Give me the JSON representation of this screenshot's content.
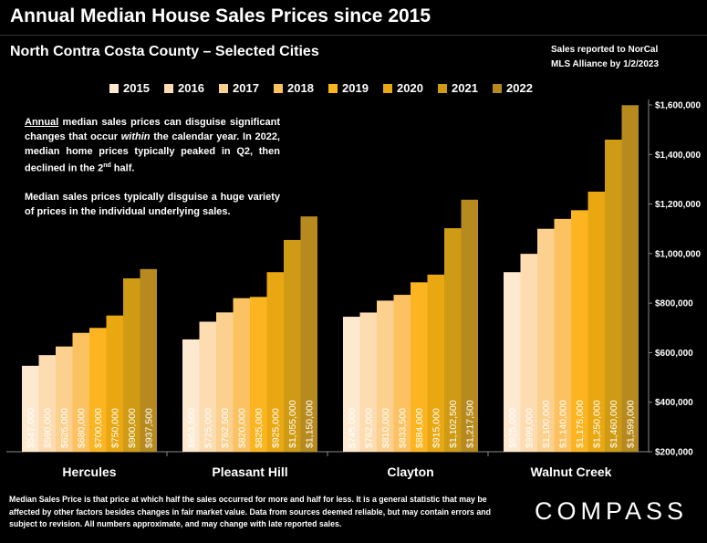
{
  "header": {
    "title": "Annual Median House Sales Prices since 2015",
    "subtitle": "North Contra Costa County – Selected Cities",
    "source_line1": "Sales reported to NorCal",
    "source_line2": "MLS Alliance by 1/2/2023"
  },
  "note": {
    "p1_underlined": "Annual",
    "p1_a": " median sales prices can disguise significant changes that occur ",
    "p1_italic": "within",
    "p1_b": " the calendar year. In 2022, median home prices typically peaked in Q2, then declined in the 2",
    "p1_sup": "nd",
    "p1_c": " half.",
    "p2": "Median sales prices typically disguise a huge variety of prices in the individual underlying sales."
  },
  "footer": {
    "text": "Median Sales Price is that price at which half the sales occurred for more and half for less. It is a general statistic that may be affected by other factors besides changes in fair market value. Data from sources deemed reliable, but may contain errors and subject to revision.  All numbers approximate, and may change with late reported sales."
  },
  "logo": {
    "text": "COMPASS"
  },
  "chart_data": {
    "type": "bar",
    "categories": [
      "Hercules",
      "Pleasant Hill",
      "Clayton",
      "Walnut Creek"
    ],
    "series": [
      {
        "name": "2015",
        "color": "#fde9cf",
        "values": [
          547000,
          653500,
          745000,
          925000
        ],
        "labels": [
          "$547,000",
          "$653,500",
          "$745,000",
          "$925,000"
        ]
      },
      {
        "name": "2016",
        "color": "#fcdcb0",
        "values": [
          590000,
          725000,
          762000,
          999000
        ],
        "labels": [
          "$590,000",
          "$725,000",
          "$762,000",
          "$999,000"
        ]
      },
      {
        "name": "2017",
        "color": "#fcd08e",
        "values": [
          625000,
          762500,
          810000,
          1100000
        ],
        "labels": [
          "$625,000",
          "$762,500",
          "$810,000",
          "$1,100,000"
        ]
      },
      {
        "name": "2018",
        "color": "#fcc262",
        "values": [
          680000,
          820000,
          833500,
          1140000
        ],
        "labels": [
          "$680,000",
          "$820,000",
          "$833,500",
          "$1,140,000"
        ]
      },
      {
        "name": "2019",
        "color": "#fcb521",
        "values": [
          700000,
          825000,
          884000,
          1175000
        ],
        "labels": [
          "$700,000",
          "$825,000",
          "$884,000",
          "$1,175,000"
        ]
      },
      {
        "name": "2020",
        "color": "#e9a712",
        "values": [
          750000,
          925000,
          915000,
          1250000
        ],
        "labels": [
          "$750,000",
          "$925,000",
          "$915,000",
          "$1,250,000"
        ]
      },
      {
        "name": "2021",
        "color": "#cf9a14",
        "values": [
          900000,
          1055000,
          1102500,
          1460000
        ],
        "labels": [
          "$900,000",
          "$1,055,000",
          "$1,102,500",
          "$1,460,000"
        ]
      },
      {
        "name": "2022",
        "color": "#b68a1f",
        "values": [
          937500,
          1150000,
          1217500,
          1599000
        ],
        "labels": [
          "$937,500",
          "$1,150,000",
          "$1,217,500",
          "$1,599,000"
        ]
      }
    ],
    "ylim": [
      200000,
      1600000
    ],
    "yticks": [
      200000,
      400000,
      600000,
      800000,
      1000000,
      1200000,
      1400000,
      1600000
    ],
    "ytick_labels": [
      "$200,000",
      "$400,000",
      "$600,000",
      "$800,000",
      "$1,000,000",
      "$1,200,000",
      "$1,400,000",
      "$1,600,000"
    ],
    "y_axis_position": "right",
    "legend_position": "top",
    "grid": false
  }
}
